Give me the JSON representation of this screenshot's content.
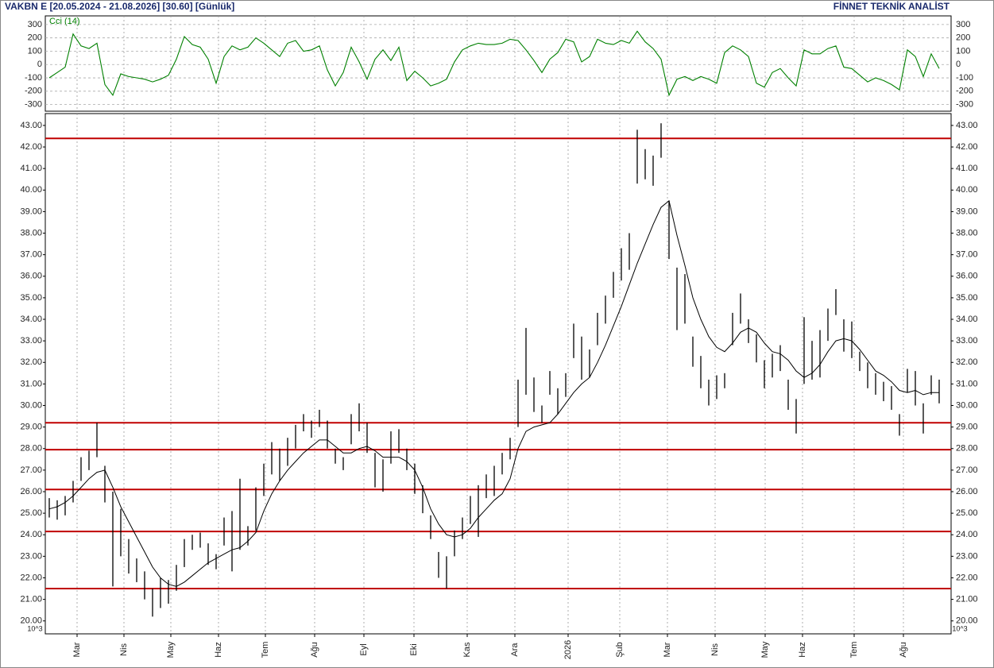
{
  "header": {
    "title": "VAKBN E  [20.05.2024 - 21.08.2026]  [30.60]  [Günlük]",
    "source": "FİNNET TEKNİK ANALİST"
  },
  "chart_data": [
    {
      "type": "line",
      "series": [
        {
          "name": "Cci (14)",
          "color": "#008000",
          "values": [
            -100,
            -60,
            -20,
            230,
            140,
            120,
            160,
            -150,
            -230,
            -70,
            -90,
            -100,
            -110,
            -130,
            -110,
            -80,
            40,
            210,
            150,
            130,
            40,
            -140,
            60,
            140,
            110,
            130,
            200,
            160,
            110,
            60,
            160,
            180,
            100,
            110,
            140,
            -40,
            -160,
            -60,
            130,
            20,
            -110,
            40,
            110,
            30,
            130,
            -120,
            -50,
            -100,
            -160,
            -140,
            -110,
            20,
            110,
            140,
            160,
            150,
            150,
            160,
            190,
            180,
            110,
            30,
            -60,
            40,
            90,
            190,
            170,
            20,
            60,
            190,
            160,
            150,
            180,
            160,
            250,
            170,
            120,
            40,
            -230,
            -110,
            -90,
            -120,
            -90,
            -110,
            -140,
            90,
            140,
            110,
            60,
            -140,
            -170,
            -60,
            -30,
            -100,
            -160,
            110,
            80,
            80,
            120,
            140,
            -20,
            -30,
            -80,
            -130,
            -100,
            -120,
            -150,
            -190,
            110,
            60,
            -90,
            80,
            -30
          ]
        }
      ],
      "ylim": [
        -350,
        365
      ],
      "yticks": [
        -300,
        -200,
        -100,
        0,
        100,
        200,
        300
      ],
      "grid": true
    },
    {
      "type": "ohlc",
      "color": "#000000",
      "high": [
        25.7,
        25.6,
        25.8,
        26.5,
        27.6,
        27.9,
        29.2,
        27.2,
        26.0,
        25.2,
        23.8,
        22.9,
        22.3,
        21.5,
        22.0,
        21.9,
        22.6,
        23.8,
        24.0,
        24.1,
        23.6,
        23.1,
        24.8,
        25.1,
        26.6,
        24.4,
        26.2,
        27.3,
        28.3,
        28.0,
        28.5,
        29.1,
        29.6,
        29.3,
        29.8,
        29.3,
        28.0,
        27.6,
        29.6,
        30.1,
        29.2,
        27.8,
        27.5,
        28.8,
        28.9,
        28.0,
        27.3,
        26.3,
        24.9,
        23.2,
        23.0,
        24.2,
        24.8,
        25.8,
        26.3,
        26.8,
        27.2,
        27.8,
        28.5,
        31.2,
        33.6,
        31.3,
        30.0,
        31.6,
        30.8,
        31.5,
        33.8,
        33.2,
        32.6,
        34.3,
        35.1,
        36.2,
        37.3,
        38.0,
        42.8,
        41.9,
        41.6,
        43.1,
        39.5,
        36.4,
        36.1,
        33.2,
        32.3,
        31.2,
        31.4,
        31.5,
        34.3,
        35.2,
        34.0,
        33.3,
        32.1,
        32.4,
        32.8,
        31.2,
        30.3,
        34.1,
        33.0,
        33.5,
        34.5,
        35.4,
        34.0,
        33.9,
        32.5,
        32.0,
        31.5,
        31.1,
        30.9,
        29.6,
        31.7,
        31.6,
        30.1,
        31.4,
        31.2
      ],
      "low": [
        24.8,
        24.7,
        24.9,
        25.5,
        26.5,
        27.0,
        27.6,
        25.5,
        21.6,
        23.0,
        22.2,
        21.8,
        21.0,
        20.2,
        20.6,
        20.8,
        21.4,
        22.5,
        23.3,
        23.4,
        22.6,
        22.4,
        23.5,
        22.3,
        23.3,
        23.5,
        24.2,
        25.8,
        26.8,
        26.5,
        27.2,
        28.0,
        28.8,
        28.5,
        29.0,
        28.0,
        27.3,
        27.0,
        28.2,
        28.8,
        27.8,
        26.2,
        26.0,
        27.3,
        27.8,
        27.0,
        25.9,
        25.0,
        23.8,
        22.0,
        21.5,
        23.0,
        23.8,
        24.5,
        23.9,
        25.7,
        25.8,
        26.8,
        27.5,
        29.0,
        30.5,
        29.7,
        29.2,
        30.5,
        29.6,
        30.4,
        32.2,
        31.2,
        31.3,
        32.8,
        33.8,
        35.0,
        35.8,
        36.3,
        40.3,
        40.5,
        40.2,
        41.5,
        36.8,
        33.5,
        33.8,
        31.8,
        30.8,
        30.0,
        30.3,
        30.8,
        32.8,
        33.8,
        32.9,
        32.0,
        30.8,
        31.3,
        31.6,
        29.8,
        28.7,
        31.0,
        31.2,
        31.3,
        33.0,
        34.2,
        32.5,
        32.2,
        31.6,
        30.8,
        30.5,
        30.2,
        29.8,
        28.6,
        30.6,
        30.0,
        28.7,
        30.5,
        30.1
      ],
      "ma": {
        "color": "#000000",
        "values": [
          25.2,
          25.3,
          25.5,
          25.8,
          26.2,
          26.6,
          26.9,
          27.0,
          26.2,
          25.3,
          24.6,
          23.9,
          23.2,
          22.5,
          22.0,
          21.7,
          21.6,
          21.8,
          22.1,
          22.4,
          22.7,
          22.9,
          23.1,
          23.3,
          23.4,
          23.7,
          24.1,
          25.1,
          25.9,
          26.5,
          27.0,
          27.4,
          27.8,
          28.1,
          28.4,
          28.4,
          28.1,
          27.8,
          27.8,
          28.0,
          28.1,
          27.9,
          27.6,
          27.6,
          27.6,
          27.4,
          27.0,
          26.2,
          25.2,
          24.5,
          24.0,
          23.9,
          24.0,
          24.3,
          24.8,
          25.2,
          25.6,
          25.9,
          26.6,
          28.0,
          28.8,
          29.0,
          29.1,
          29.2,
          29.6,
          30.1,
          30.6,
          31.0,
          31.3,
          32.0,
          32.8,
          33.7,
          34.6,
          35.6,
          36.6,
          37.5,
          38.4,
          39.2,
          39.5,
          37.9,
          36.5,
          35.0,
          34.0,
          33.2,
          32.7,
          32.5,
          32.9,
          33.4,
          33.6,
          33.4,
          32.9,
          32.5,
          32.4,
          32.1,
          31.6,
          31.3,
          31.5,
          31.9,
          32.5,
          33.0,
          33.1,
          33.0,
          32.6,
          32.1,
          31.6,
          31.4,
          31.1,
          30.7,
          30.6,
          30.7,
          30.5,
          30.6,
          30.6
        ]
      },
      "levels": {
        "color": "#c00000",
        "values": [
          42.4,
          29.2,
          27.95,
          26.1,
          24.15,
          21.5
        ]
      },
      "ylim": [
        19.4,
        43.55
      ],
      "yticks": [
        {
          "value": 20,
          "label": "20.00"
        },
        {
          "value": 21,
          "label": "21.00"
        },
        {
          "value": 22,
          "label": "22.00"
        },
        {
          "value": 23,
          "label": "23.00"
        },
        {
          "value": 24,
          "label": "24.00"
        },
        {
          "value": 25,
          "label": "25.00"
        },
        {
          "value": 26,
          "label": "26.00"
        },
        {
          "value": 27,
          "label": "27.00"
        },
        {
          "value": 28,
          "label": "28.00"
        },
        {
          "value": 29,
          "label": "29.00"
        },
        {
          "value": 30,
          "label": "30.00"
        },
        {
          "value": 31,
          "label": "31.00"
        },
        {
          "value": 32,
          "label": "32.00"
        },
        {
          "value": 33,
          "label": "33.00"
        },
        {
          "value": 34,
          "label": "34.00"
        },
        {
          "value": 35,
          "label": "35.00"
        },
        {
          "value": 36,
          "label": "36.00"
        },
        {
          "value": 37,
          "label": "37.00"
        },
        {
          "value": 38,
          "label": "38.00"
        },
        {
          "value": 39,
          "label": "39.00"
        },
        {
          "value": 40,
          "label": "40.00"
        },
        {
          "value": 41,
          "label": "41.00"
        },
        {
          "value": 42,
          "label": "42.00"
        },
        {
          "value": 43,
          "label": "43.00"
        }
      ],
      "x_labels": [
        "Mar",
        "Nis",
        "May",
        "Haz",
        "Tem",
        "Ağu",
        "Eyl",
        "Eki",
        "Kas",
        "Ara",
        "2026",
        "Şub",
        "Mar",
        "Nis",
        "May",
        "Haz",
        "Tem",
        "Ağu"
      ],
      "scale_note": "10^3"
    }
  ]
}
